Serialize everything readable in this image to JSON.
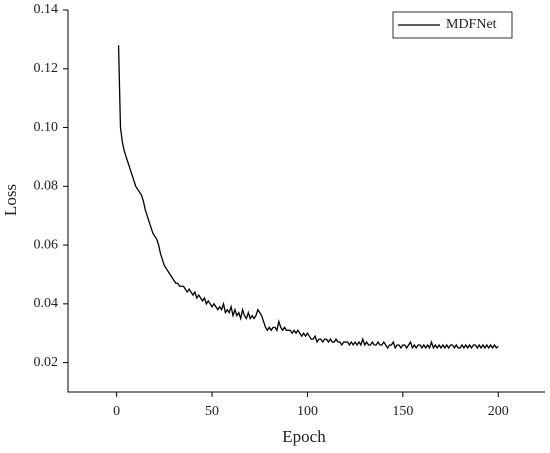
{
  "chart_data": {
    "type": "line",
    "x_label": "Epoch",
    "y_label": "Loss",
    "x": [
      1,
      2,
      3,
      4,
      5,
      6,
      7,
      8,
      9,
      10,
      11,
      12,
      13,
      14,
      15,
      16,
      17,
      18,
      19,
      20,
      21,
      22,
      23,
      24,
      25,
      26,
      27,
      28,
      29,
      30,
      31,
      32,
      33,
      34,
      35,
      36,
      37,
      38,
      39,
      40,
      41,
      42,
      43,
      44,
      45,
      46,
      47,
      48,
      49,
      50,
      51,
      52,
      53,
      54,
      55,
      56,
      57,
      58,
      59,
      60,
      61,
      62,
      63,
      64,
      65,
      66,
      67,
      68,
      69,
      70,
      71,
      72,
      73,
      74,
      75,
      76,
      77,
      78,
      79,
      80,
      81,
      82,
      83,
      84,
      85,
      86,
      87,
      88,
      89,
      90,
      91,
      92,
      93,
      94,
      95,
      96,
      97,
      98,
      99,
      100,
      101,
      102,
      103,
      104,
      105,
      106,
      107,
      108,
      109,
      110,
      111,
      112,
      113,
      114,
      115,
      116,
      117,
      118,
      119,
      120,
      121,
      122,
      123,
      124,
      125,
      126,
      127,
      128,
      129,
      130,
      131,
      132,
      133,
      134,
      135,
      136,
      137,
      138,
      139,
      140,
      141,
      142,
      143,
      144,
      145,
      146,
      147,
      148,
      149,
      150,
      151,
      152,
      153,
      154,
      155,
      156,
      157,
      158,
      159,
      160,
      161,
      162,
      163,
      164,
      165,
      166,
      167,
      168,
      169,
      170,
      171,
      172,
      173,
      174,
      175,
      176,
      177,
      178,
      179,
      180,
      181,
      182,
      183,
      184,
      185,
      186,
      187,
      188,
      189,
      190,
      191,
      192,
      193,
      194,
      195,
      196,
      197,
      198,
      199,
      200
    ],
    "series": [
      {
        "name": "MDFNet",
        "color": "#000000",
        "values": [
          0.128,
          0.1,
          0.095,
          0.092,
          0.09,
          0.088,
          0.086,
          0.084,
          0.082,
          0.08,
          0.079,
          0.078,
          0.077,
          0.075,
          0.072,
          0.07,
          0.068,
          0.066,
          0.064,
          0.063,
          0.062,
          0.06,
          0.057,
          0.055,
          0.053,
          0.052,
          0.051,
          0.05,
          0.049,
          0.048,
          0.047,
          0.047,
          0.046,
          0.046,
          0.046,
          0.045,
          0.044,
          0.045,
          0.044,
          0.043,
          0.044,
          0.042,
          0.043,
          0.042,
          0.041,
          0.042,
          0.04,
          0.041,
          0.04,
          0.039,
          0.04,
          0.039,
          0.038,
          0.039,
          0.038,
          0.04,
          0.037,
          0.038,
          0.037,
          0.039,
          0.036,
          0.038,
          0.036,
          0.037,
          0.035,
          0.038,
          0.036,
          0.035,
          0.037,
          0.035,
          0.036,
          0.035,
          0.036,
          0.038,
          0.037,
          0.036,
          0.034,
          0.032,
          0.031,
          0.032,
          0.031,
          0.032,
          0.032,
          0.031,
          0.034,
          0.032,
          0.031,
          0.032,
          0.031,
          0.031,
          0.031,
          0.03,
          0.031,
          0.03,
          0.031,
          0.03,
          0.029,
          0.03,
          0.029,
          0.03,
          0.029,
          0.028,
          0.028,
          0.029,
          0.027,
          0.028,
          0.028,
          0.027,
          0.028,
          0.028,
          0.027,
          0.028,
          0.027,
          0.027,
          0.028,
          0.027,
          0.027,
          0.026,
          0.027,
          0.027,
          0.027,
          0.026,
          0.027,
          0.026,
          0.027,
          0.026,
          0.027,
          0.026,
          0.028,
          0.026,
          0.027,
          0.026,
          0.026,
          0.027,
          0.026,
          0.026,
          0.027,
          0.026,
          0.026,
          0.027,
          0.026,
          0.025,
          0.026,
          0.026,
          0.027,
          0.025,
          0.026,
          0.026,
          0.025,
          0.026,
          0.026,
          0.025,
          0.026,
          0.027,
          0.025,
          0.026,
          0.025,
          0.026,
          0.026,
          0.025,
          0.026,
          0.025,
          0.026,
          0.025,
          0.027,
          0.025,
          0.026,
          0.025,
          0.026,
          0.025,
          0.026,
          0.025,
          0.026,
          0.025,
          0.026,
          0.026,
          0.025,
          0.026,
          0.025,
          0.025,
          0.026,
          0.025,
          0.026,
          0.025,
          0.026,
          0.025,
          0.026,
          0.026,
          0.025,
          0.026,
          0.025,
          0.026,
          0.025,
          0.026,
          0.025,
          0.026,
          0.025,
          0.026,
          0.025,
          0.0255
        ]
      }
    ],
    "xlim": [
      -25.5,
      224.5
    ],
    "ylim": [
      0.01,
      0.14
    ],
    "xticks": [
      0,
      50,
      100,
      150,
      200
    ],
    "yticks": [
      0.02,
      0.04,
      0.06,
      0.08,
      {
        "value": 0.1,
        "label": "0.10"
      },
      0.12,
      0.14
    ],
    "legend": "upper right"
  }
}
